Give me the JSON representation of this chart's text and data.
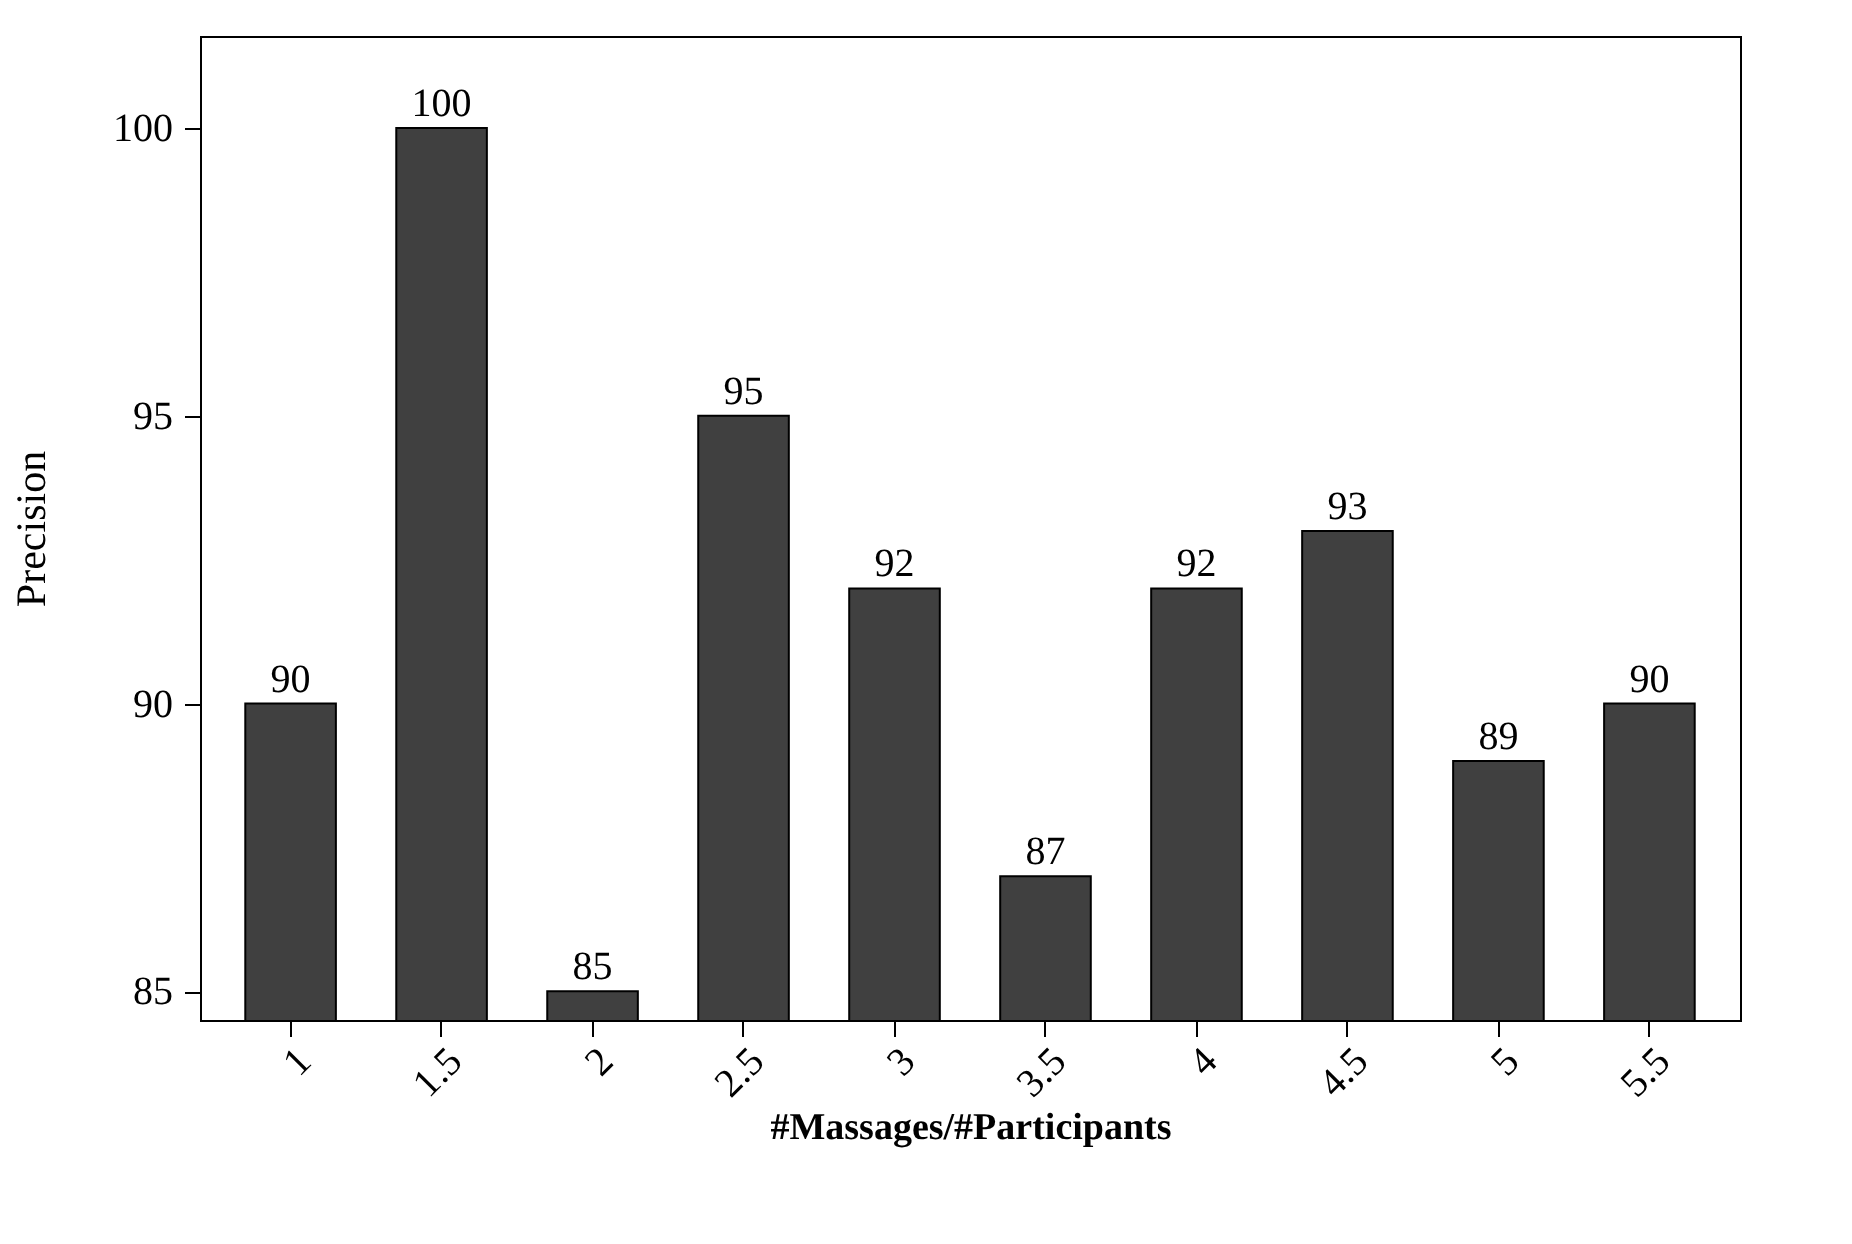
{
  "chart_data": {
    "type": "bar",
    "xlabel": "#Massages/#Participants",
    "ylabel": "Precision",
    "categories": [
      "1",
      "1.5",
      "2",
      "2.5",
      "3",
      "3.5",
      "4",
      "4.5",
      "5",
      "5.5"
    ],
    "values": [
      90,
      100,
      85,
      95,
      92,
      87,
      92,
      93,
      89,
      90
    ],
    "color": "#404040",
    "ylim": [
      84.5,
      101.6
    ],
    "yticks": [
      85,
      90,
      95,
      100
    ],
    "grid": false,
    "data_labels": true
  }
}
